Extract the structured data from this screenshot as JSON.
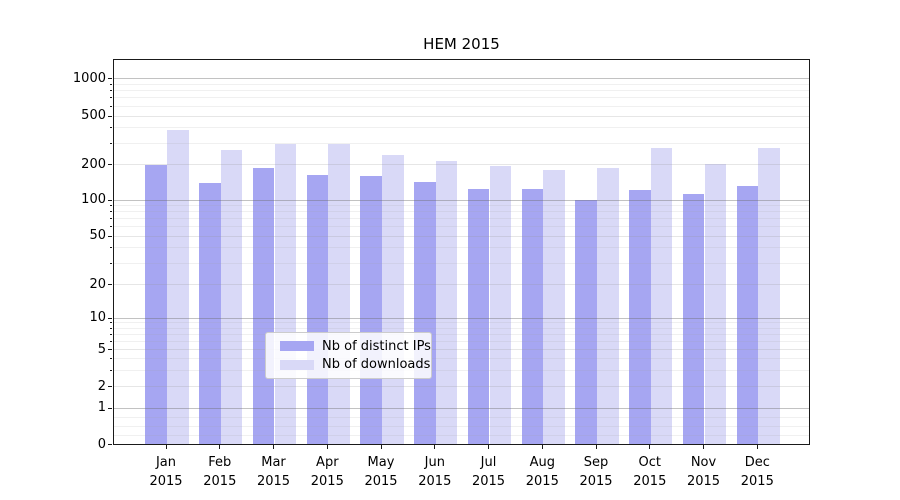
{
  "chart_data": {
    "type": "bar",
    "title": "HEM 2015",
    "categories": [
      "Jan",
      "Feb",
      "Mar",
      "Apr",
      "May",
      "Jun",
      "Jul",
      "Aug",
      "Sep",
      "Oct",
      "Nov",
      "Dec"
    ],
    "year": "2015",
    "series": [
      {
        "name": "Nb of distinct IPs",
        "color": "#a6a6f2",
        "values": [
          197,
          139,
          186,
          163,
          158,
          141,
          124,
          124,
          99,
          121,
          111,
          131
        ]
      },
      {
        "name": "Nb of downloads",
        "color": "#d9d9f7",
        "values": [
          377,
          263,
          294,
          294,
          237,
          213,
          191,
          177,
          186,
          270,
          202,
          270
        ]
      }
    ],
    "xlabel": "",
    "ylabel": "",
    "y_scale": "symlog",
    "y_ticks": [
      0,
      1,
      2,
      5,
      10,
      20,
      50,
      100,
      200,
      500,
      1000
    ],
    "ylim": [
      0,
      1500
    ],
    "grid": "on",
    "legend_position": "lower center"
  }
}
